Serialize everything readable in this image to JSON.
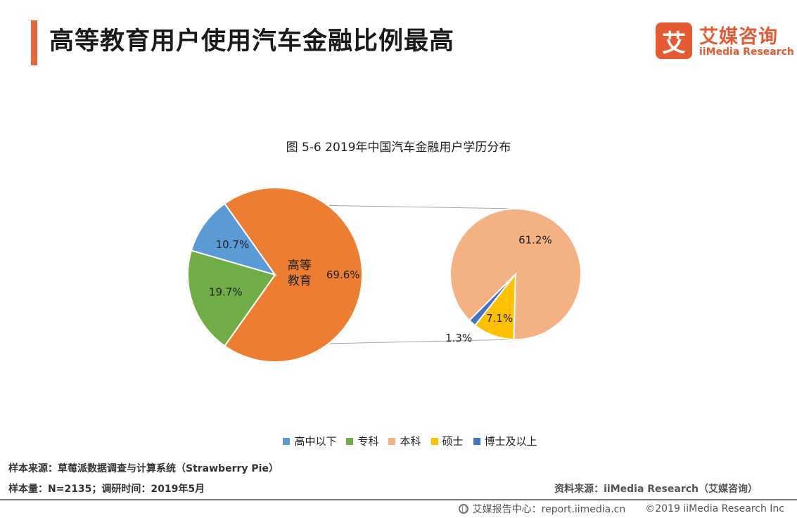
{
  "header": {
    "title": "高等教育用户使用汽车金融比例最高"
  },
  "logo": {
    "mark": "艾",
    "name_cn": "艾媒咨询",
    "name_en": "iiMedia Research"
  },
  "chart_data": {
    "type": "pie",
    "title": "图 5-6  2019年中国汽车金融用户学历分布",
    "main_pie": {
      "slices": [
        {
          "name": "高等教育",
          "value": 69.6,
          "label": "69.6%",
          "inner_label": "高等\n教育",
          "color": "#ed7d31"
        },
        {
          "name": "高中以下",
          "value": 10.7,
          "label": "10.7%",
          "color": "#5b9bd5"
        },
        {
          "name": "专科",
          "value": 19.7,
          "label": "19.7%",
          "color": "#70ad47"
        }
      ]
    },
    "breakdown_pie": {
      "of": "高等教育",
      "slices": [
        {
          "name": "本科",
          "value": 61.2,
          "label": "61.2%",
          "color": "#f4b183"
        },
        {
          "name": "硕士",
          "value": 7.1,
          "label": "7.1%",
          "color": "#ffc000"
        },
        {
          "name": "博士及以上",
          "value": 1.3,
          "label": "1.3%",
          "color": "#4472c4"
        }
      ]
    },
    "legend": [
      {
        "label": "高中以下",
        "color": "#5b9bd5"
      },
      {
        "label": "专科",
        "color": "#70ad47"
      },
      {
        "label": "本科",
        "color": "#f4b183"
      },
      {
        "label": "硕士",
        "color": "#ffc000"
      },
      {
        "label": "博士及以上",
        "color": "#4472c4"
      }
    ],
    "legend_position": "bottom"
  },
  "footer": {
    "sample_source": "样本来源：草莓派数据调查与计算系统（Strawberry Pie）",
    "sample_size": "样本量：N=2135；调研时间：2019年5月",
    "data_source": "资料来源：iiMedia Research（艾媒咨询）",
    "report_center": "艾媒报告中心：report.iimedia.cn",
    "copyright": "©2019  iiMedia Research  Inc"
  }
}
